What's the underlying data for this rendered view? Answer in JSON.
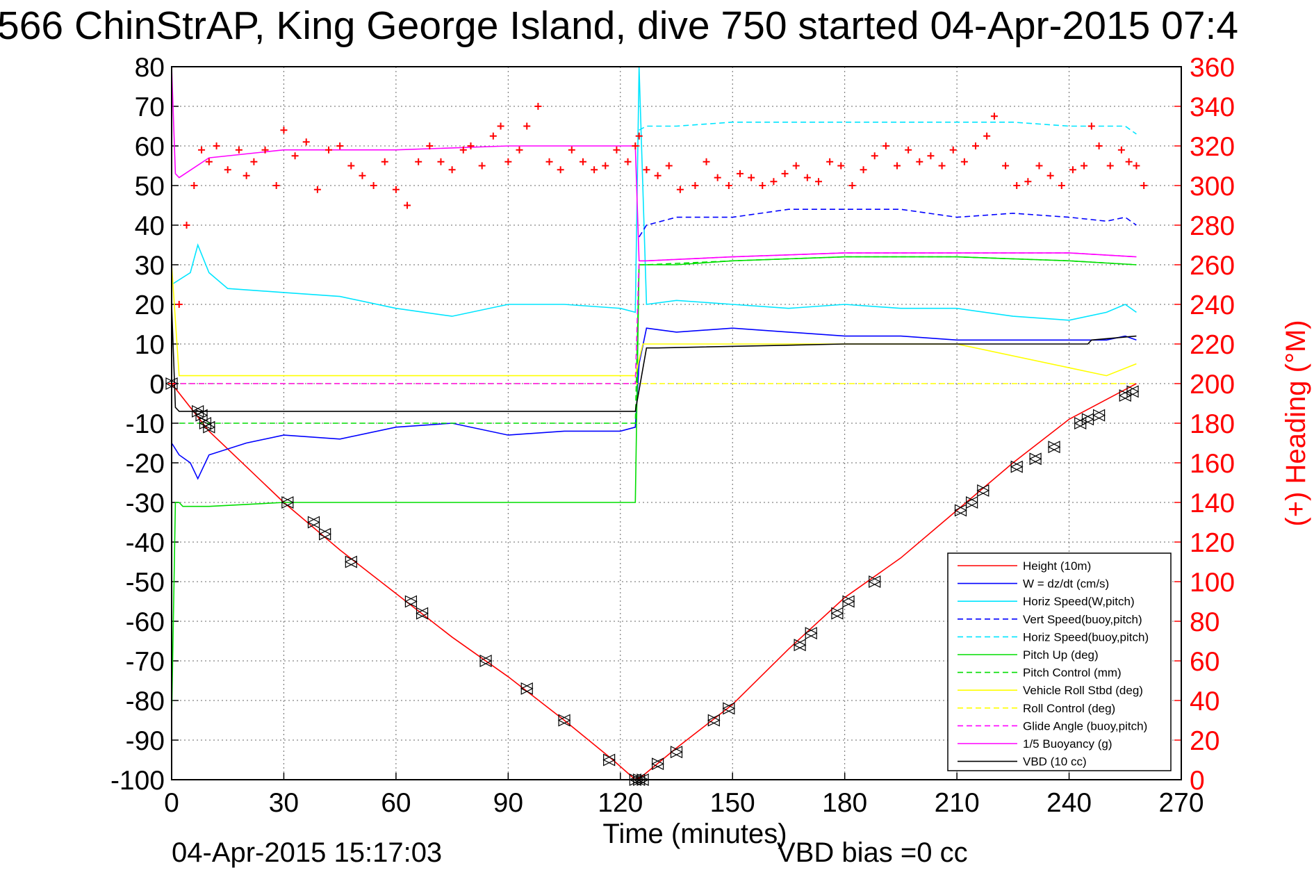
{
  "chart_data": {
    "type": "line",
    "title": "566 ChinStrAP, King George Island, dive 750 started 04-Apr-2015 07:4",
    "xlabel": "Time (minutes)",
    "ylabel": "",
    "ylabel_right": "(+) Heading (°M)",
    "xlim": [
      0,
      270
    ],
    "ylim": [
      -100,
      80
    ],
    "ylim_right": [
      0,
      360
    ],
    "x_ticks": [
      "0",
      "30",
      "60",
      "90",
      "120",
      "150",
      "180",
      "210",
      "240",
      "270"
    ],
    "y_ticks": [
      "80",
      "70",
      "60",
      "50",
      "40",
      "30",
      "20",
      "10",
      "0",
      "-10",
      "-20",
      "-30",
      "-40",
      "-50",
      "-60",
      "-70",
      "-80",
      "-90",
      "-100"
    ],
    "y_ticks_right": [
      "360",
      "340",
      "320",
      "300",
      "280",
      "260",
      "240",
      "220",
      "200",
      "180",
      "160",
      "140",
      "120",
      "100",
      "80",
      "60",
      "40",
      "20",
      "0"
    ],
    "grid": true,
    "legend_position": "bottom-right",
    "footer_left": "04-Apr-2015 15:17:03",
    "footer_right": "VBD bias =0 cc",
    "series": [
      {
        "name": "Height (10m)",
        "color": "#ff0000",
        "dash": "solid",
        "x": [
          0,
          10,
          30,
          45,
          60,
          75,
          90,
          105,
          118,
          124,
          126,
          135,
          150,
          165,
          180,
          195,
          210,
          225,
          240,
          250,
          256,
          258
        ],
        "y": [
          0,
          -12,
          -30,
          -42,
          -53,
          -64,
          -74,
          -85,
          -95,
          -100,
          -99,
          -92,
          -81,
          -67,
          -54,
          -44,
          -32,
          -20,
          -9,
          -4,
          -1,
          0
        ]
      },
      {
        "name": "W = dz/dt (cm/s)",
        "color": "#0000ff",
        "dash": "solid",
        "x": [
          0,
          2,
          5,
          7,
          10,
          20,
          30,
          45,
          60,
          75,
          90,
          105,
          120,
          124,
          125,
          127,
          135,
          150,
          165,
          180,
          195,
          210,
          225,
          240,
          250,
          255,
          258
        ],
        "y": [
          -15,
          -18,
          -20,
          -24,
          -18,
          -15,
          -13,
          -14,
          -11,
          -10,
          -13,
          -12,
          -12,
          -11,
          5,
          14,
          13,
          14,
          13,
          12,
          12,
          11,
          11,
          11,
          11,
          12,
          11
        ]
      },
      {
        "name": "Horiz Speed(W,pitch)",
        "color": "#00e5ff",
        "dash": "solid",
        "x": [
          0,
          5,
          7,
          10,
          15,
          30,
          45,
          60,
          75,
          90,
          105,
          120,
          124,
          125,
          127,
          135,
          150,
          165,
          180,
          195,
          210,
          225,
          240,
          250,
          255,
          258
        ],
        "y": [
          25,
          28,
          35,
          28,
          24,
          23,
          22,
          19,
          17,
          20,
          20,
          19,
          18,
          80,
          20,
          21,
          20,
          19,
          20,
          19,
          19,
          17,
          16,
          18,
          20,
          18
        ]
      },
      {
        "name": "Vert Speed(buoy,pitch)",
        "color": "#0000ff",
        "dash": "dashed",
        "x": [
          125,
          127,
          135,
          150,
          165,
          180,
          195,
          210,
          225,
          240,
          250,
          255,
          258
        ],
        "y": [
          37,
          40,
          42,
          42,
          44,
          44,
          44,
          42,
          43,
          42,
          41,
          42,
          40
        ]
      },
      {
        "name": "Horiz Speed(buoy,pitch)",
        "color": "#00e5ff",
        "dash": "dashed",
        "x": [
          125,
          127,
          135,
          150,
          165,
          180,
          195,
          210,
          225,
          240,
          250,
          255,
          258
        ],
        "y": [
          64,
          65,
          65,
          66,
          66,
          66,
          66,
          66,
          66,
          65,
          65,
          65,
          63
        ]
      },
      {
        "name": "Pitch Up (deg)",
        "color": "#00dd00",
        "dash": "solid",
        "x": [
          0,
          1,
          2,
          3,
          5,
          10,
          30,
          60,
          90,
          120,
          124,
          125,
          127,
          135,
          150,
          180,
          210,
          240,
          258
        ],
        "y": [
          -85,
          -30,
          -30,
          -31,
          -31,
          -31,
          -30,
          -30,
          -30,
          -30,
          -30,
          30,
          30,
          30,
          31,
          32,
          32,
          31,
          30
        ]
      },
      {
        "name": "Pitch Control (mm)",
        "color": "#00dd00",
        "dash": "dashed",
        "x": [
          2,
          10,
          30,
          60,
          90,
          120,
          124,
          125,
          127,
          150,
          180,
          210,
          240,
          258
        ],
        "y": [
          -10,
          -10,
          -10,
          -10,
          -10,
          -10,
          -10,
          30,
          30,
          31,
          32,
          32,
          31,
          30
        ]
      },
      {
        "name": "Vehicle Roll Stbd (deg)",
        "color": "#ffff00",
        "dash": "solid",
        "x": [
          0,
          2,
          10,
          30,
          60,
          90,
          120,
          124,
          126,
          130,
          150,
          180,
          210,
          240,
          250,
          258
        ],
        "y": [
          30,
          2,
          2,
          2,
          2,
          2,
          2,
          2,
          10,
          10,
          10,
          10,
          10,
          4,
          2,
          5
        ]
      },
      {
        "name": "Roll Control (deg)",
        "color": "#ffff00",
        "dash": "dashed",
        "x": [
          0,
          10,
          60,
          120,
          124,
          126,
          150,
          210,
          258
        ],
        "y": [
          0,
          0,
          0,
          0,
          0,
          0,
          0,
          0,
          0
        ]
      },
      {
        "name": "Glide Angle (buoy,pitch)",
        "color": "#ff00ff",
        "dash": "dashed",
        "x": [
          0,
          10,
          60,
          120,
          124,
          125,
          127,
          150,
          180,
          210,
          240,
          258
        ],
        "y": [
          0,
          0,
          0,
          0,
          0,
          31,
          31,
          32,
          33,
          33,
          33,
          32
        ]
      },
      {
        "name": "1/5 Buoyancy (g)",
        "color": "#ff00ff",
        "dash": "solid",
        "x": [
          0,
          1,
          2,
          10,
          30,
          60,
          90,
          120,
          124,
          125,
          127,
          150,
          180,
          210,
          240,
          258
        ],
        "y": [
          80,
          53,
          52,
          57,
          59,
          59,
          60,
          60,
          60,
          31,
          31,
          32,
          33,
          33,
          33,
          32
        ]
      },
      {
        "name": "VBD (10 cc)",
        "color": "#000000",
        "dash": "solid",
        "x": [
          0,
          1,
          2,
          10,
          60,
          120,
          124,
          127,
          130,
          180,
          210,
          225,
          245,
          246,
          258
        ],
        "y": [
          20,
          -6,
          -7,
          -7,
          -7,
          -7,
          -7,
          9,
          9,
          10,
          10,
          10,
          10,
          11,
          12
        ]
      }
    ],
    "heading_series": {
      "name": "(+) Heading",
      "color": "#ff0000",
      "marker": "+",
      "x": [
        0,
        2,
        4,
        6,
        8,
        10,
        12,
        15,
        18,
        20,
        22,
        25,
        28,
        30,
        33,
        36,
        39,
        42,
        45,
        48,
        51,
        54,
        57,
        60,
        63,
        66,
        69,
        72,
        75,
        78,
        80,
        83,
        86,
        88,
        90,
        93,
        95,
        98,
        101,
        104,
        107,
        110,
        113,
        116,
        119,
        122,
        124,
        125,
        127,
        130,
        133,
        136,
        140,
        143,
        146,
        149,
        152,
        155,
        158,
        161,
        164,
        167,
        170,
        173,
        176,
        179,
        182,
        185,
        188,
        191,
        194,
        197,
        200,
        203,
        206,
        209,
        212,
        215,
        218,
        220,
        223,
        226,
        229,
        232,
        235,
        238,
        241,
        244,
        246,
        248,
        251,
        254,
        256,
        258,
        260
      ],
      "y": [
        200,
        240,
        280,
        300,
        318,
        312,
        320,
        308,
        318,
        305,
        312,
        318,
        300,
        328,
        315,
        322,
        298,
        318,
        320,
        310,
        305,
        300,
        312,
        298,
        290,
        312,
        320,
        312,
        308,
        318,
        320,
        310,
        325,
        330,
        312,
        318,
        330,
        340,
        312,
        308,
        318,
        312,
        308,
        310,
        318,
        312,
        320,
        325,
        308,
        305,
        310,
        298,
        300,
        312,
        304,
        300,
        306,
        304,
        300,
        302,
        306,
        310,
        304,
        302,
        312,
        310,
        300,
        308,
        315,
        320,
        310,
        318,
        312,
        315,
        310,
        318,
        312,
        320,
        325,
        335,
        310,
        300,
        302,
        310,
        305,
        300,
        308,
        310,
        330,
        320,
        310,
        318,
        312,
        310,
        300
      ]
    },
    "vbd_triangles": {
      "x": [
        0,
        7,
        8,
        9,
        10,
        31,
        38,
        41,
        48,
        64,
        67,
        84,
        95,
        105,
        117,
        124,
        125,
        126,
        130,
        135,
        145,
        149,
        168,
        171,
        178,
        181,
        188,
        211,
        214,
        217,
        226,
        231,
        236,
        243,
        245,
        248,
        255,
        257
      ],
      "y": [
        0,
        -7,
        -8,
        -10,
        -11,
        -30,
        -35,
        -38,
        -45,
        -55,
        -58,
        -70,
        -77,
        -85,
        -95,
        -100,
        -100,
        -100,
        -96,
        -93,
        -85,
        -82,
        -66,
        -63,
        -58,
        -55,
        -50,
        -32,
        -30,
        -27,
        -21,
        -19,
        -16,
        -10,
        -9,
        -8,
        -3,
        -2
      ]
    }
  }
}
